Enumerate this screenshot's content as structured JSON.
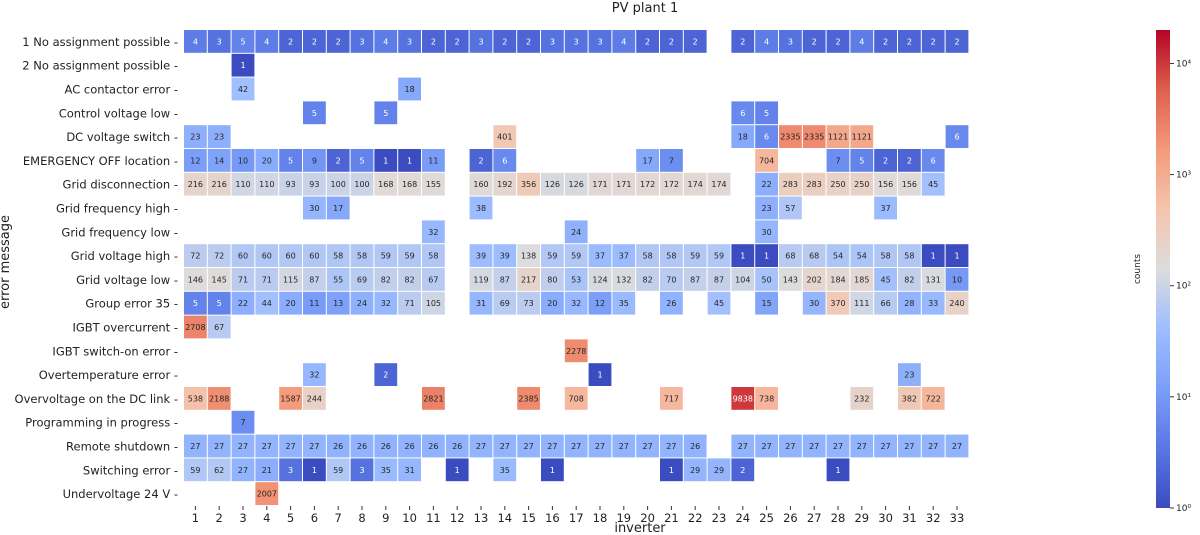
{
  "chart_data": {
    "type": "heatmap",
    "title": "PV plant 1",
    "xlabel": "inverter",
    "ylabel": "error message",
    "colorbar_label": "counts",
    "color_scale": "log",
    "color_range": [
      1,
      20000
    ],
    "colormap": "coolwarm",
    "colorbar_ticks": [
      "10⁰",
      "10¹",
      "10²",
      "10³",
      "10⁴"
    ],
    "columns": [
      "1",
      "2",
      "3",
      "4",
      "5",
      "6",
      "7",
      "8",
      "9",
      "10",
      "11",
      "12",
      "13",
      "14",
      "15",
      "16",
      "17",
      "18",
      "19",
      "20",
      "21",
      "22",
      "23",
      "24",
      "25",
      "26",
      "27",
      "28",
      "29",
      "30",
      "31",
      "32",
      "33"
    ],
    "rows": [
      {
        "label": "1 No assignment possible",
        "values": [
          4,
          3,
          5,
          4,
          2,
          2,
          2,
          3,
          4,
          3,
          2,
          2,
          3,
          2,
          2,
          3,
          3,
          3,
          4,
          2,
          2,
          2,
          null,
          2,
          4,
          3,
          2,
          2,
          4,
          2,
          2,
          2,
          2
        ]
      },
      {
        "label": "2 No assignment possible",
        "values": [
          null,
          null,
          1,
          null,
          null,
          null,
          null,
          null,
          null,
          null,
          null,
          null,
          null,
          null,
          null,
          null,
          null,
          null,
          null,
          null,
          null,
          null,
          null,
          null,
          null,
          null,
          null,
          null,
          null,
          null,
          null,
          null,
          null
        ]
      },
      {
        "label": "AC contactor error",
        "values": [
          null,
          null,
          42,
          null,
          null,
          null,
          null,
          null,
          null,
          18,
          null,
          null,
          null,
          null,
          null,
          null,
          null,
          null,
          null,
          null,
          null,
          null,
          null,
          null,
          null,
          null,
          null,
          null,
          null,
          null,
          null,
          null,
          null
        ]
      },
      {
        "label": "Control voltage low",
        "values": [
          null,
          null,
          null,
          null,
          null,
          5,
          null,
          null,
          5,
          null,
          null,
          null,
          null,
          null,
          null,
          null,
          null,
          null,
          null,
          null,
          null,
          null,
          null,
          6,
          5,
          null,
          null,
          null,
          null,
          null,
          null,
          null,
          null
        ]
      },
      {
        "label": "DC voltage switch",
        "values": [
          23,
          23,
          null,
          null,
          null,
          null,
          null,
          null,
          null,
          null,
          null,
          null,
          null,
          401,
          null,
          null,
          null,
          null,
          null,
          null,
          null,
          null,
          null,
          18,
          6,
          2335,
          2335,
          1121,
          1121,
          null,
          null,
          null,
          6
        ]
      },
      {
        "label": "EMERGENCY OFF location",
        "values": [
          12,
          14,
          10,
          20,
          5,
          9,
          2,
          5,
          1,
          1,
          11,
          null,
          2,
          6,
          null,
          null,
          null,
          null,
          null,
          17,
          7,
          null,
          null,
          null,
          704,
          null,
          null,
          7,
          5,
          2,
          2,
          6,
          null
        ]
      },
      {
        "label": "Grid disconnection",
        "values": [
          216,
          216,
          110,
          110,
          93,
          93,
          100,
          100,
          168,
          168,
          155,
          null,
          160,
          192,
          356,
          126,
          126,
          171,
          171,
          172,
          172,
          174,
          174,
          null,
          22,
          283,
          283,
          250,
          250,
          156,
          156,
          45,
          null
        ]
      },
      {
        "label": "Grid frequency high",
        "values": [
          null,
          null,
          null,
          null,
          null,
          30,
          17,
          null,
          null,
          null,
          null,
          null,
          38,
          null,
          null,
          null,
          null,
          null,
          null,
          null,
          null,
          null,
          null,
          null,
          23,
          57,
          null,
          null,
          null,
          37,
          null,
          null,
          null
        ]
      },
      {
        "label": "Grid frequency low",
        "values": [
          null,
          null,
          null,
          null,
          null,
          null,
          null,
          null,
          null,
          null,
          32,
          null,
          null,
          null,
          null,
          null,
          24,
          null,
          null,
          null,
          null,
          null,
          null,
          null,
          30,
          null,
          null,
          null,
          null,
          null,
          null,
          null,
          null
        ]
      },
      {
        "label": "Grid voltage high",
        "values": [
          72,
          72,
          60,
          60,
          60,
          60,
          58,
          58,
          59,
          59,
          58,
          null,
          39,
          39,
          138,
          59,
          59,
          37,
          37,
          58,
          58,
          59,
          59,
          1,
          1,
          68,
          68,
          54,
          54,
          58,
          58,
          1,
          1
        ]
      },
      {
        "label": "Grid voltage low",
        "values": [
          146,
          145,
          71,
          71,
          115,
          87,
          55,
          69,
          82,
          82,
          67,
          null,
          119,
          87,
          217,
          80,
          53,
          124,
          132,
          82,
          70,
          87,
          87,
          104,
          50,
          143,
          202,
          184,
          185,
          45,
          82,
          131,
          10
        ]
      },
      {
        "label": "Group error 35",
        "values": [
          5,
          5,
          22,
          44,
          20,
          11,
          13,
          24,
          32,
          71,
          105,
          null,
          31,
          69,
          73,
          20,
          32,
          12,
          35,
          null,
          26,
          null,
          45,
          null,
          15,
          null,
          30,
          370,
          111,
          66,
          28,
          33,
          240
        ]
      },
      {
        "label": "IGBT overcurrent",
        "values": [
          2708,
          67,
          null,
          null,
          null,
          null,
          null,
          null,
          null,
          null,
          null,
          null,
          null,
          null,
          null,
          null,
          null,
          null,
          null,
          null,
          null,
          null,
          null,
          null,
          null,
          null,
          null,
          null,
          null,
          null,
          null,
          null,
          null
        ]
      },
      {
        "label": "IGBT switch-on error",
        "values": [
          null,
          null,
          null,
          null,
          null,
          null,
          null,
          null,
          null,
          null,
          null,
          null,
          null,
          null,
          null,
          null,
          2278,
          null,
          null,
          null,
          null,
          null,
          null,
          null,
          null,
          null,
          null,
          null,
          null,
          null,
          null,
          null,
          null
        ]
      },
      {
        "label": "Overtemperature error",
        "values": [
          null,
          null,
          null,
          null,
          null,
          32,
          null,
          null,
          2,
          null,
          null,
          null,
          null,
          null,
          null,
          null,
          null,
          1,
          null,
          null,
          null,
          null,
          null,
          null,
          null,
          null,
          null,
          null,
          null,
          null,
          23,
          null,
          null
        ]
      },
      {
        "label": "Overvoltage on the DC link",
        "values": [
          538,
          2188,
          null,
          null,
          1587,
          244,
          null,
          null,
          null,
          null,
          2821,
          null,
          null,
          null,
          2385,
          null,
          708,
          null,
          null,
          null,
          717,
          null,
          null,
          9838,
          738,
          null,
          null,
          null,
          232,
          null,
          382,
          722,
          null
        ]
      },
      {
        "label": "Programming in progress",
        "values": [
          null,
          null,
          7,
          null,
          null,
          null,
          null,
          null,
          null,
          null,
          null,
          null,
          null,
          null,
          null,
          null,
          null,
          null,
          null,
          null,
          null,
          null,
          null,
          null,
          null,
          null,
          null,
          null,
          null,
          null,
          null,
          null,
          null
        ]
      },
      {
        "label": "Remote shutdown",
        "values": [
          27,
          27,
          27,
          27,
          27,
          27,
          26,
          26,
          26,
          26,
          26,
          26,
          27,
          27,
          27,
          27,
          27,
          27,
          27,
          27,
          27,
          26,
          null,
          27,
          27,
          27,
          27,
          27,
          27,
          27,
          27,
          27,
          27
        ]
      },
      {
        "label": "Switching error",
        "values": [
          59,
          62,
          27,
          21,
          3,
          1,
          59,
          3,
          35,
          31,
          null,
          1,
          null,
          35,
          null,
          1,
          null,
          null,
          null,
          null,
          1,
          29,
          29,
          2,
          null,
          null,
          null,
          1,
          null,
          null,
          null,
          null,
          null
        ]
      },
      {
        "label": "Undervoltage 24 V",
        "values": [
          null,
          null,
          null,
          2007,
          null,
          null,
          null,
          null,
          null,
          null,
          null,
          null,
          null,
          null,
          null,
          null,
          null,
          null,
          null,
          null,
          null,
          null,
          null,
          null,
          null,
          null,
          null,
          null,
          null,
          null,
          null,
          null,
          null
        ]
      }
    ]
  }
}
